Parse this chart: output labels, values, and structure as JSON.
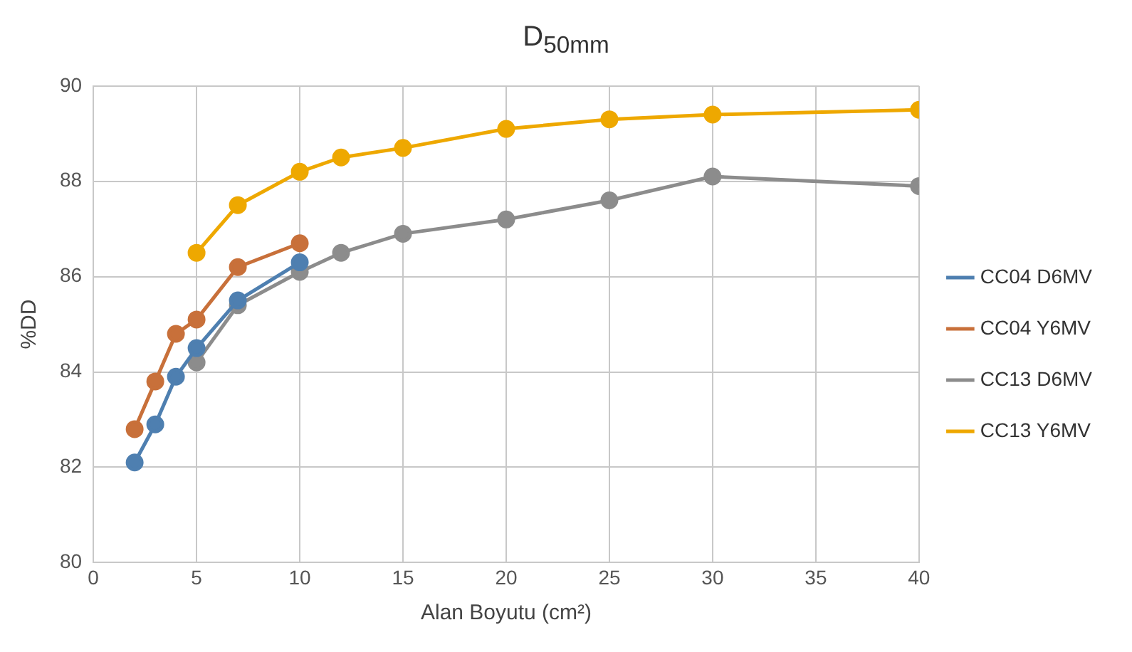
{
  "chart_data": {
    "type": "line",
    "title": "D$_{50mm}$",
    "xlabel": "Alan Boyutu (cm²)",
    "ylabel": "%DD",
    "xlim": [
      0,
      40
    ],
    "xticks": [
      0,
      5,
      10,
      15,
      20,
      25,
      30,
      35,
      40
    ],
    "ylim": [
      80,
      90
    ],
    "yticks": [
      80,
      82,
      84,
      86,
      88,
      90
    ],
    "grid": true,
    "legend": "right",
    "marker": "circle",
    "series": [
      {
        "name": "CC04 D6MV",
        "color": "#4e7fb0",
        "x": [
          2,
          3,
          4,
          5,
          7,
          10
        ],
        "values": [
          82.1,
          82.9,
          83.9,
          84.5,
          85.5,
          86.3
        ]
      },
      {
        "name": "CC04 Y6MV",
        "color": "#c8703a",
        "x": [
          2,
          3,
          4,
          5,
          7,
          10
        ],
        "values": [
          82.8,
          83.8,
          84.8,
          85.1,
          86.2,
          86.7
        ]
      },
      {
        "name": "CC13 D6MV",
        "color": "#8c8c8c",
        "x": [
          5,
          7,
          10,
          12,
          15,
          20,
          25,
          30,
          40
        ],
        "values": [
          84.2,
          85.4,
          86.1,
          86.5,
          86.9,
          87.2,
          87.6,
          88.1,
          87.9
        ]
      },
      {
        "name": "CC13 Y6MV",
        "color": "#eea800",
        "x": [
          5,
          7,
          10,
          12,
          15,
          20,
          25,
          30,
          40
        ],
        "values": [
          86.5,
          87.5,
          88.2,
          88.5,
          88.7,
          89.1,
          89.3,
          89.4,
          89.5
        ]
      }
    ]
  }
}
